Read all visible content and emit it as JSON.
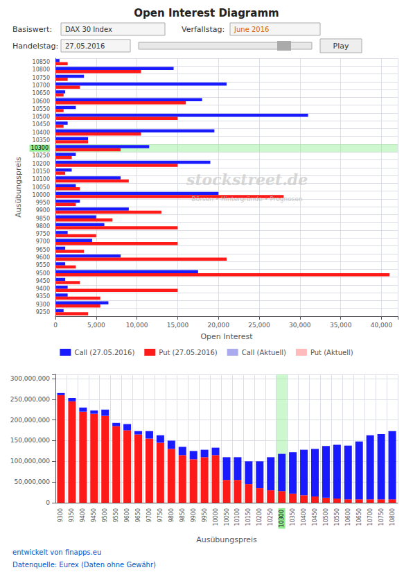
{
  "chart_data": [
    {
      "type": "bar",
      "orientation": "horizontal",
      "title": "Open Interest Diagramm",
      "annotations": [
        "Basiswert:",
        "DAX 30 Index",
        "Verfallstag:",
        "June 2016",
        "Handelstag:",
        "27.05.2016",
        "Play",
        "stockstreet.de",
        "Börsen • Hintergründe • Prognosen"
      ],
      "categories": [
        10850,
        10800,
        10750,
        10700,
        10650,
        10600,
        10550,
        10500,
        10450,
        10400,
        10350,
        10300,
        10250,
        10200,
        10150,
        10100,
        10050,
        10000,
        9950,
        9900,
        9850,
        9800,
        9750,
        9700,
        9650,
        9600,
        9550,
        9500,
        9450,
        9400,
        9350,
        9300,
        9250
      ],
      "series": [
        {
          "name": "Call (27.05.2016)",
          "color": "#1a1aff",
          "values": [
            500,
            14500,
            3500,
            21000,
            1200,
            18000,
            2500,
            31000,
            1500,
            19500,
            4000,
            11500,
            2500,
            19000,
            2000,
            8000,
            2500,
            20000,
            3000,
            9000,
            5000,
            6000,
            1500,
            4500,
            1200,
            8000,
            1200,
            17500,
            1200,
            1500,
            1500,
            6500,
            1000
          ]
        },
        {
          "name": "Put (27.05.2016)",
          "color": "#ff1a1a",
          "values": [
            1500,
            10500,
            1500,
            3000,
            1000,
            16000,
            1000,
            15000,
            1000,
            10500,
            4000,
            8000,
            2000,
            15000,
            1200,
            9000,
            3000,
            28000,
            2500,
            13000,
            7000,
            15000,
            5000,
            15000,
            3500,
            21000,
            2500,
            41000,
            3000,
            15000,
            5500,
            5500,
            4000
          ]
        },
        {
          "name": "Call (Aktuell)",
          "color": "#aaaaee",
          "values": [
            null,
            null,
            null,
            null,
            null,
            null,
            null,
            null,
            null,
            null,
            null,
            null,
            null,
            null,
            null,
            null,
            null,
            null,
            null,
            null,
            null,
            null,
            null,
            null,
            null,
            null,
            null,
            null,
            null,
            null,
            null,
            null,
            null
          ]
        },
        {
          "name": "Put (Aktuell)",
          "color": "#ffbbbb",
          "values": [
            null,
            null,
            null,
            null,
            null,
            null,
            null,
            null,
            null,
            null,
            null,
            null,
            null,
            null,
            null,
            null,
            null,
            null,
            null,
            null,
            null,
            null,
            null,
            null,
            null,
            null,
            null,
            null,
            null,
            null,
            null,
            null,
            null
          ]
        }
      ],
      "highlight": {
        "category": 10300,
        "color": "#90ee90"
      },
      "xlabel": "Open Interest",
      "ylabel": "Ausübungspreis",
      "xlim": [
        0,
        42000
      ],
      "xticks": [
        0,
        {
          "value": 5000,
          "label": "5,000"
        },
        {
          "value": 10000,
          "label": "10,000"
        },
        {
          "value": 15000,
          "label": "15,000"
        },
        {
          "value": 20000,
          "label": "20,000"
        },
        {
          "value": 25000,
          "label": "25,000"
        },
        {
          "value": 30000,
          "label": "30,000"
        },
        {
          "value": 35000,
          "label": "35,000"
        },
        {
          "value": 40000,
          "label": "40,000"
        }
      ],
      "grid": true,
      "legend": "bottom"
    },
    {
      "type": "bar",
      "stacked": true,
      "categories": [
        9300,
        9350,
        9400,
        9450,
        9500,
        9550,
        9600,
        9650,
        9700,
        9750,
        9800,
        9850,
        9900,
        9950,
        10000,
        10050,
        10100,
        10150,
        10200,
        10250,
        10300,
        10350,
        10400,
        10450,
        10500,
        10550,
        10600,
        10650,
        10700,
        10750,
        10800
      ],
      "series": [
        {
          "name": "Put (27.05.2016)",
          "color": "#ff1a1a",
          "values": [
            260000000,
            245000000,
            220000000,
            215000000,
            210000000,
            185000000,
            175000000,
            165000000,
            155000000,
            145000000,
            130000000,
            115000000,
            105000000,
            110000000,
            115000000,
            55000000,
            55000000,
            45000000,
            35000000,
            30000000,
            28000000,
            22000000,
            18000000,
            15000000,
            12000000,
            10000000,
            8000000,
            8000000,
            8000000,
            8000000,
            8000000
          ]
        },
        {
          "name": "Call (27.05.2016)",
          "color": "#1a1aff",
          "values": [
            5000000,
            8000000,
            10000000,
            8000000,
            15000000,
            8000000,
            15000000,
            8000000,
            18000000,
            18000000,
            20000000,
            20000000,
            20000000,
            18000000,
            18000000,
            55000000,
            55000000,
            55000000,
            65000000,
            80000000,
            90000000,
            100000000,
            110000000,
            115000000,
            125000000,
            130000000,
            130000000,
            140000000,
            155000000,
            158000000,
            165000000
          ]
        }
      ],
      "highlight": {
        "category": 10300,
        "color": "#90ee90"
      },
      "xlabel": "Ausübungspreis",
      "ylim": [
        0,
        310000000
      ],
      "yticks": [
        0,
        {
          "value": 50000000,
          "label": "50,000,000"
        },
        {
          "value": 100000000,
          "label": "100,000,000"
        },
        {
          "value": 150000000,
          "label": "150,000,000"
        },
        {
          "value": 200000000,
          "label": "200,000,000"
        },
        {
          "value": 250000000,
          "label": "250,000,000"
        },
        {
          "value": 300000000,
          "label": "300,000,000"
        }
      ],
      "grid": true,
      "annotations": [
        "entwickelt von finapps.eu",
        "Datenquelle: Eurex (Daten ohne Gewähr)"
      ]
    }
  ]
}
